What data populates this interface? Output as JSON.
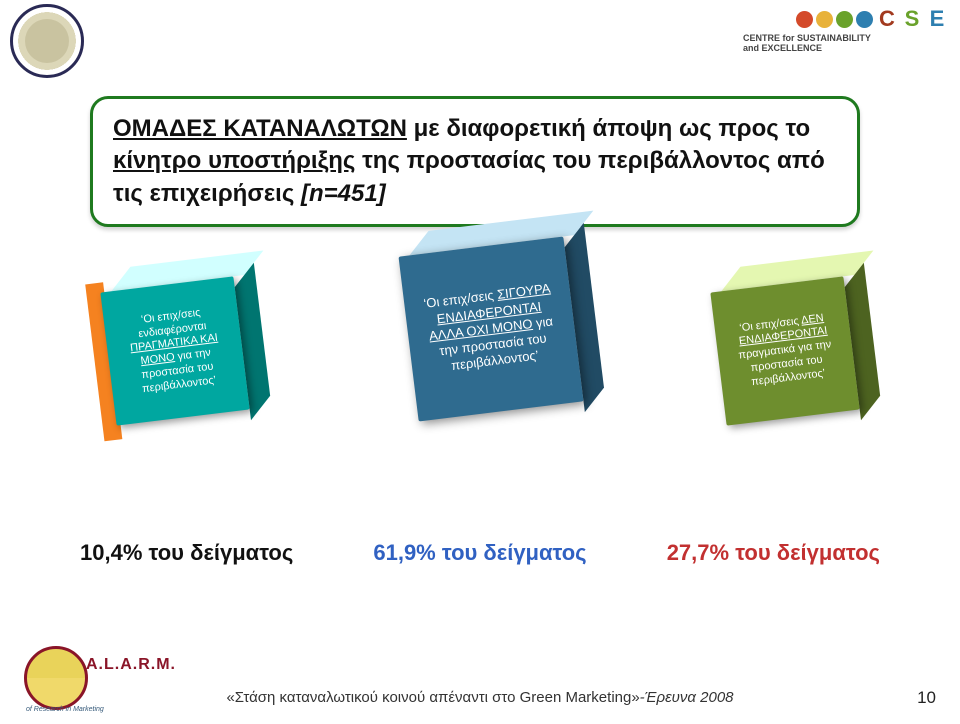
{
  "header": {
    "cse": {
      "dot_colors": [
        "#d44a2a",
        "#e8b23a",
        "#6aa22b",
        "#2e7fb0"
      ],
      "letters": [
        "C",
        "S",
        "E"
      ],
      "letter_colors": [
        "#a23a1f",
        "#6aa22b",
        "#2e7fb0"
      ],
      "line1": "CENTRE for SUSTAINABILITY",
      "line2": "and EXCELLENCE"
    }
  },
  "title": {
    "lead": "ΟΜΑΔΕΣ ΚΑΤΑΝΑΛΩΤΩΝ",
    "rest1": " με διαφορετική άποψη ως προς το ",
    "underline2": "κίνητρο υποστήριξης",
    "rest2": " της προστασίας του περιβάλλοντος από τις επιχειρήσεις ",
    "ital": "[n=451]"
  },
  "cubes": [
    {
      "pre": "‘Οι επιχ/σεις ενδιαφέρονται ",
      "u": "ΠΡΑΓΜΑΤΙΚΑ ΚΑΙ ΜΟΝΟ",
      "post": " για την προστασία του περιβάλλοντος’"
    },
    {
      "pre": "‘Οι επιχ/σεις ",
      "u": "ΣΙΓΟΥΡΑ ΕΝΔΙΑΦΕΡΟΝΤΑΙ ΑΛΛΑ ΟΧΙ ΜΟΝΟ",
      "post": " για την προστασία του περιβάλλοντος’"
    },
    {
      "pre": "‘Οι επιχ/σεις ",
      "u": "ΔΕΝ ΕΝΔΙΑΦΕΡΟΝΤΑΙ",
      "post": " πραγματικά για την προστασία του περιβάλλοντος’"
    }
  ],
  "stats": [
    {
      "value": "10,4%",
      "label": " του δείγματος",
      "color": "#111111"
    },
    {
      "value": "61,9%",
      "label": " του δείγματος",
      "color": "#3061c2"
    },
    {
      "value": "27,7%",
      "label": " του δείγματος",
      "color": "#c23030"
    }
  ],
  "footer": {
    "alarm_brand": "A.L.A.R.M.",
    "alarm_sub": "of Research in Marketing",
    "caption_quote": "«Στάση καταναλωτικού κοινού απέναντι στο Green Marketing»",
    "caption_tail": "-Έρευνα 2008",
    "page": "10"
  }
}
